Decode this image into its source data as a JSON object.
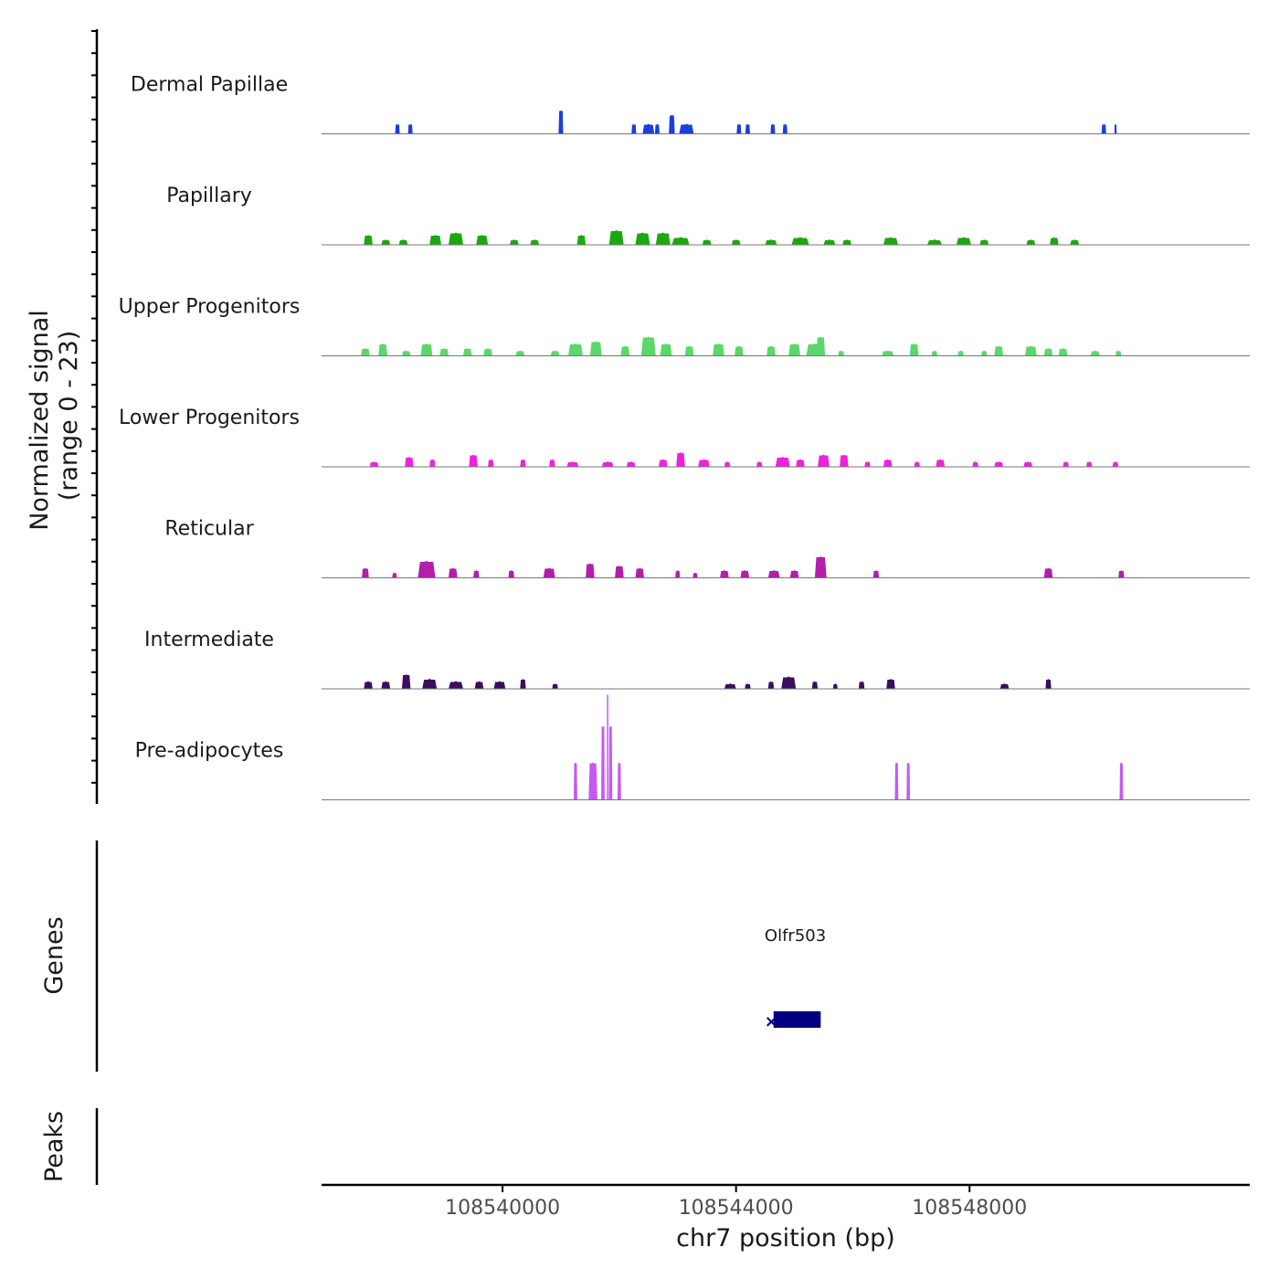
{
  "chart_data": {
    "type": "area",
    "title": "",
    "xlabel": "chr7 position (bp)",
    "ylabel": "Normalized signal\n(range 0 - 23)",
    "xlim": [
      108536900,
      108552800
    ],
    "ylim": [
      0,
      23
    ],
    "x_ticks": [
      108540000,
      108544000,
      108548000
    ],
    "x_tick_labels": [
      "108540000",
      "108544000",
      "108548000"
    ],
    "colors": {
      "dermal": "#1a3fdc",
      "papillary": "#1aa80e",
      "upper": "#5ad86a",
      "lower": "#ee22dc",
      "reticular": "#b31eaa",
      "intermediate": "#3b0d5e",
      "preadipocytes": "#c45af2",
      "gene": "#000080"
    },
    "tracks": [
      {
        "name": "Dermal Papillae",
        "color_key": "dermal",
        "peaks": [
          [
            108538200,
            80,
            2
          ],
          [
            108538420,
            80,
            2
          ],
          [
            108541000,
            80,
            5
          ],
          [
            108542250,
            80,
            2
          ],
          [
            108542500,
            200,
            2
          ],
          [
            108542650,
            80,
            2
          ],
          [
            108542900,
            100,
            4
          ],
          [
            108543150,
            250,
            2
          ],
          [
            108544050,
            80,
            2
          ],
          [
            108544200,
            80,
            2
          ],
          [
            108544630,
            80,
            2
          ],
          [
            108544840,
            80,
            2
          ],
          [
            108550300,
            80,
            2
          ],
          [
            108550500,
            30,
            2
          ]
        ]
      },
      {
        "name": "Papillary",
        "color_key": "papillary",
        "peaks": [
          [
            108537700,
            150,
            2
          ],
          [
            108538000,
            150,
            1
          ],
          [
            108538300,
            150,
            1
          ],
          [
            108538850,
            200,
            2
          ],
          [
            108539200,
            250,
            2.5
          ],
          [
            108539650,
            200,
            2
          ],
          [
            108540200,
            150,
            1
          ],
          [
            108540550,
            150,
            1
          ],
          [
            108541350,
            150,
            2
          ],
          [
            108541950,
            250,
            3
          ],
          [
            108542400,
            250,
            2.5
          ],
          [
            108542750,
            250,
            2.5
          ],
          [
            108543050,
            300,
            1.5
          ],
          [
            108543500,
            150,
            1
          ],
          [
            108544000,
            150,
            1
          ],
          [
            108544600,
            200,
            1
          ],
          [
            108545100,
            300,
            1.5
          ],
          [
            108545600,
            200,
            1
          ],
          [
            108545900,
            150,
            1
          ],
          [
            108546650,
            250,
            1.5
          ],
          [
            108547400,
            250,
            1
          ],
          [
            108547900,
            250,
            1.5
          ],
          [
            108548250,
            150,
            1
          ],
          [
            108549050,
            150,
            1
          ],
          [
            108549450,
            150,
            1.5
          ],
          [
            108549800,
            150,
            1
          ]
        ]
      },
      {
        "name": "Upper Progenitors",
        "color_key": "upper",
        "peaks": [
          [
            108537650,
            150,
            1.5
          ],
          [
            108537950,
            150,
            2.5
          ],
          [
            108538350,
            150,
            1
          ],
          [
            108538700,
            200,
            2.5
          ],
          [
            108539000,
            150,
            1.5
          ],
          [
            108539400,
            150,
            1.5
          ],
          [
            108539750,
            150,
            1.5
          ],
          [
            108540300,
            150,
            1
          ],
          [
            108540900,
            150,
            1
          ],
          [
            108541250,
            250,
            2.5
          ],
          [
            108541600,
            200,
            3
          ],
          [
            108542100,
            150,
            2
          ],
          [
            108542500,
            250,
            4
          ],
          [
            108542800,
            200,
            2.5
          ],
          [
            108543200,
            150,
            2
          ],
          [
            108543700,
            200,
            2.5
          ],
          [
            108544050,
            150,
            2
          ],
          [
            108544600,
            150,
            2
          ],
          [
            108545000,
            200,
            2.5
          ],
          [
            108545350,
            300,
            2.5
          ],
          [
            108545450,
            150,
            4
          ],
          [
            108545800,
            100,
            1
          ],
          [
            108546600,
            200,
            1
          ],
          [
            108547050,
            150,
            2.5
          ],
          [
            108547400,
            100,
            1
          ],
          [
            108547850,
            100,
            1
          ],
          [
            108548250,
            100,
            1
          ],
          [
            108548500,
            150,
            2
          ],
          [
            108549050,
            200,
            2
          ],
          [
            108549350,
            150,
            1.5
          ],
          [
            108549600,
            150,
            1.5
          ],
          [
            108550150,
            150,
            1
          ],
          [
            108550550,
            100,
            1
          ]
        ]
      },
      {
        "name": "Lower Progenitors",
        "color_key": "lower",
        "peaks": [
          [
            108537800,
            150,
            1
          ],
          [
            108538400,
            150,
            2
          ],
          [
            108538800,
            100,
            1.5
          ],
          [
            108539500,
            150,
            2.5
          ],
          [
            108539800,
            100,
            1.5
          ],
          [
            108540350,
            100,
            1.5
          ],
          [
            108540850,
            100,
            1.5
          ],
          [
            108541200,
            200,
            1
          ],
          [
            108541800,
            200,
            1
          ],
          [
            108542200,
            150,
            1
          ],
          [
            108542750,
            150,
            1.5
          ],
          [
            108543050,
            150,
            3
          ],
          [
            108543450,
            200,
            1.5
          ],
          [
            108543850,
            100,
            1
          ],
          [
            108544400,
            100,
            1
          ],
          [
            108544800,
            250,
            2
          ],
          [
            108545100,
            150,
            1.5
          ],
          [
            108545500,
            200,
            2.5
          ],
          [
            108545850,
            150,
            2.5
          ],
          [
            108546250,
            100,
            1
          ],
          [
            108546600,
            150,
            1.5
          ],
          [
            108547100,
            100,
            1
          ],
          [
            108547500,
            150,
            1.5
          ],
          [
            108548100,
            100,
            1
          ],
          [
            108548500,
            150,
            1
          ],
          [
            108549000,
            150,
            1
          ],
          [
            108549650,
            100,
            1
          ],
          [
            108550050,
            100,
            1
          ],
          [
            108550500,
            100,
            1
          ]
        ]
      },
      {
        "name": "Reticular",
        "color_key": "reticular",
        "peaks": [
          [
            108537650,
            120,
            2
          ],
          [
            108538150,
            80,
            1
          ],
          [
            108538700,
            300,
            3.5
          ],
          [
            108539150,
            150,
            2
          ],
          [
            108539550,
            100,
            1.5
          ],
          [
            108540150,
            100,
            1.5
          ],
          [
            108540800,
            200,
            2
          ],
          [
            108541500,
            150,
            3
          ],
          [
            108542000,
            150,
            2.5
          ],
          [
            108542350,
            150,
            2
          ],
          [
            108543000,
            80,
            1.5
          ],
          [
            108543300,
            80,
            1
          ],
          [
            108543800,
            150,
            1.5
          ],
          [
            108544150,
            150,
            1.5
          ],
          [
            108544650,
            200,
            1.5
          ],
          [
            108545000,
            150,
            1.5
          ],
          [
            108545450,
            200,
            4.5
          ],
          [
            108546400,
            100,
            1.5
          ],
          [
            108549350,
            150,
            2
          ],
          [
            108550600,
            100,
            1.5
          ]
        ]
      },
      {
        "name": "Intermediate",
        "color_key": "intermediate",
        "peaks": [
          [
            108537700,
            150,
            1.5
          ],
          [
            108538000,
            150,
            1.5
          ],
          [
            108538350,
            150,
            3
          ],
          [
            108538750,
            250,
            2
          ],
          [
            108539200,
            250,
            1.5
          ],
          [
            108539600,
            150,
            1.5
          ],
          [
            108539950,
            200,
            1.5
          ],
          [
            108540350,
            100,
            2
          ],
          [
            108540900,
            100,
            1
          ],
          [
            108543900,
            200,
            1
          ],
          [
            108544200,
            100,
            1
          ],
          [
            108544600,
            100,
            1.5
          ],
          [
            108544900,
            250,
            2.5
          ],
          [
            108545350,
            100,
            1.5
          ],
          [
            108545700,
            80,
            1
          ],
          [
            108546150,
            100,
            1.5
          ],
          [
            108546650,
            150,
            2
          ],
          [
            108548600,
            150,
            1
          ],
          [
            108549350,
            100,
            2
          ]
        ]
      },
      {
        "name": "Pre-adipocytes",
        "color_key": "preadipocytes",
        "peaks": [
          [
            108541250,
            60,
            8
          ],
          [
            108541550,
            150,
            8
          ],
          [
            108541720,
            60,
            16
          ],
          [
            108541850,
            60,
            16
          ],
          [
            108542000,
            60,
            8
          ],
          [
            108546750,
            60,
            8
          ],
          [
            108546950,
            60,
            8
          ],
          [
            108550600,
            60,
            8
          ]
        ],
        "spike": [
          108541800,
          23
        ]
      }
    ],
    "gene_track": {
      "title": "Genes",
      "gene": "Olfr503",
      "start": 108544580,
      "end": 108545450,
      "strand": "-"
    },
    "peaks_track": {
      "title": "Peaks",
      "regions": []
    }
  }
}
